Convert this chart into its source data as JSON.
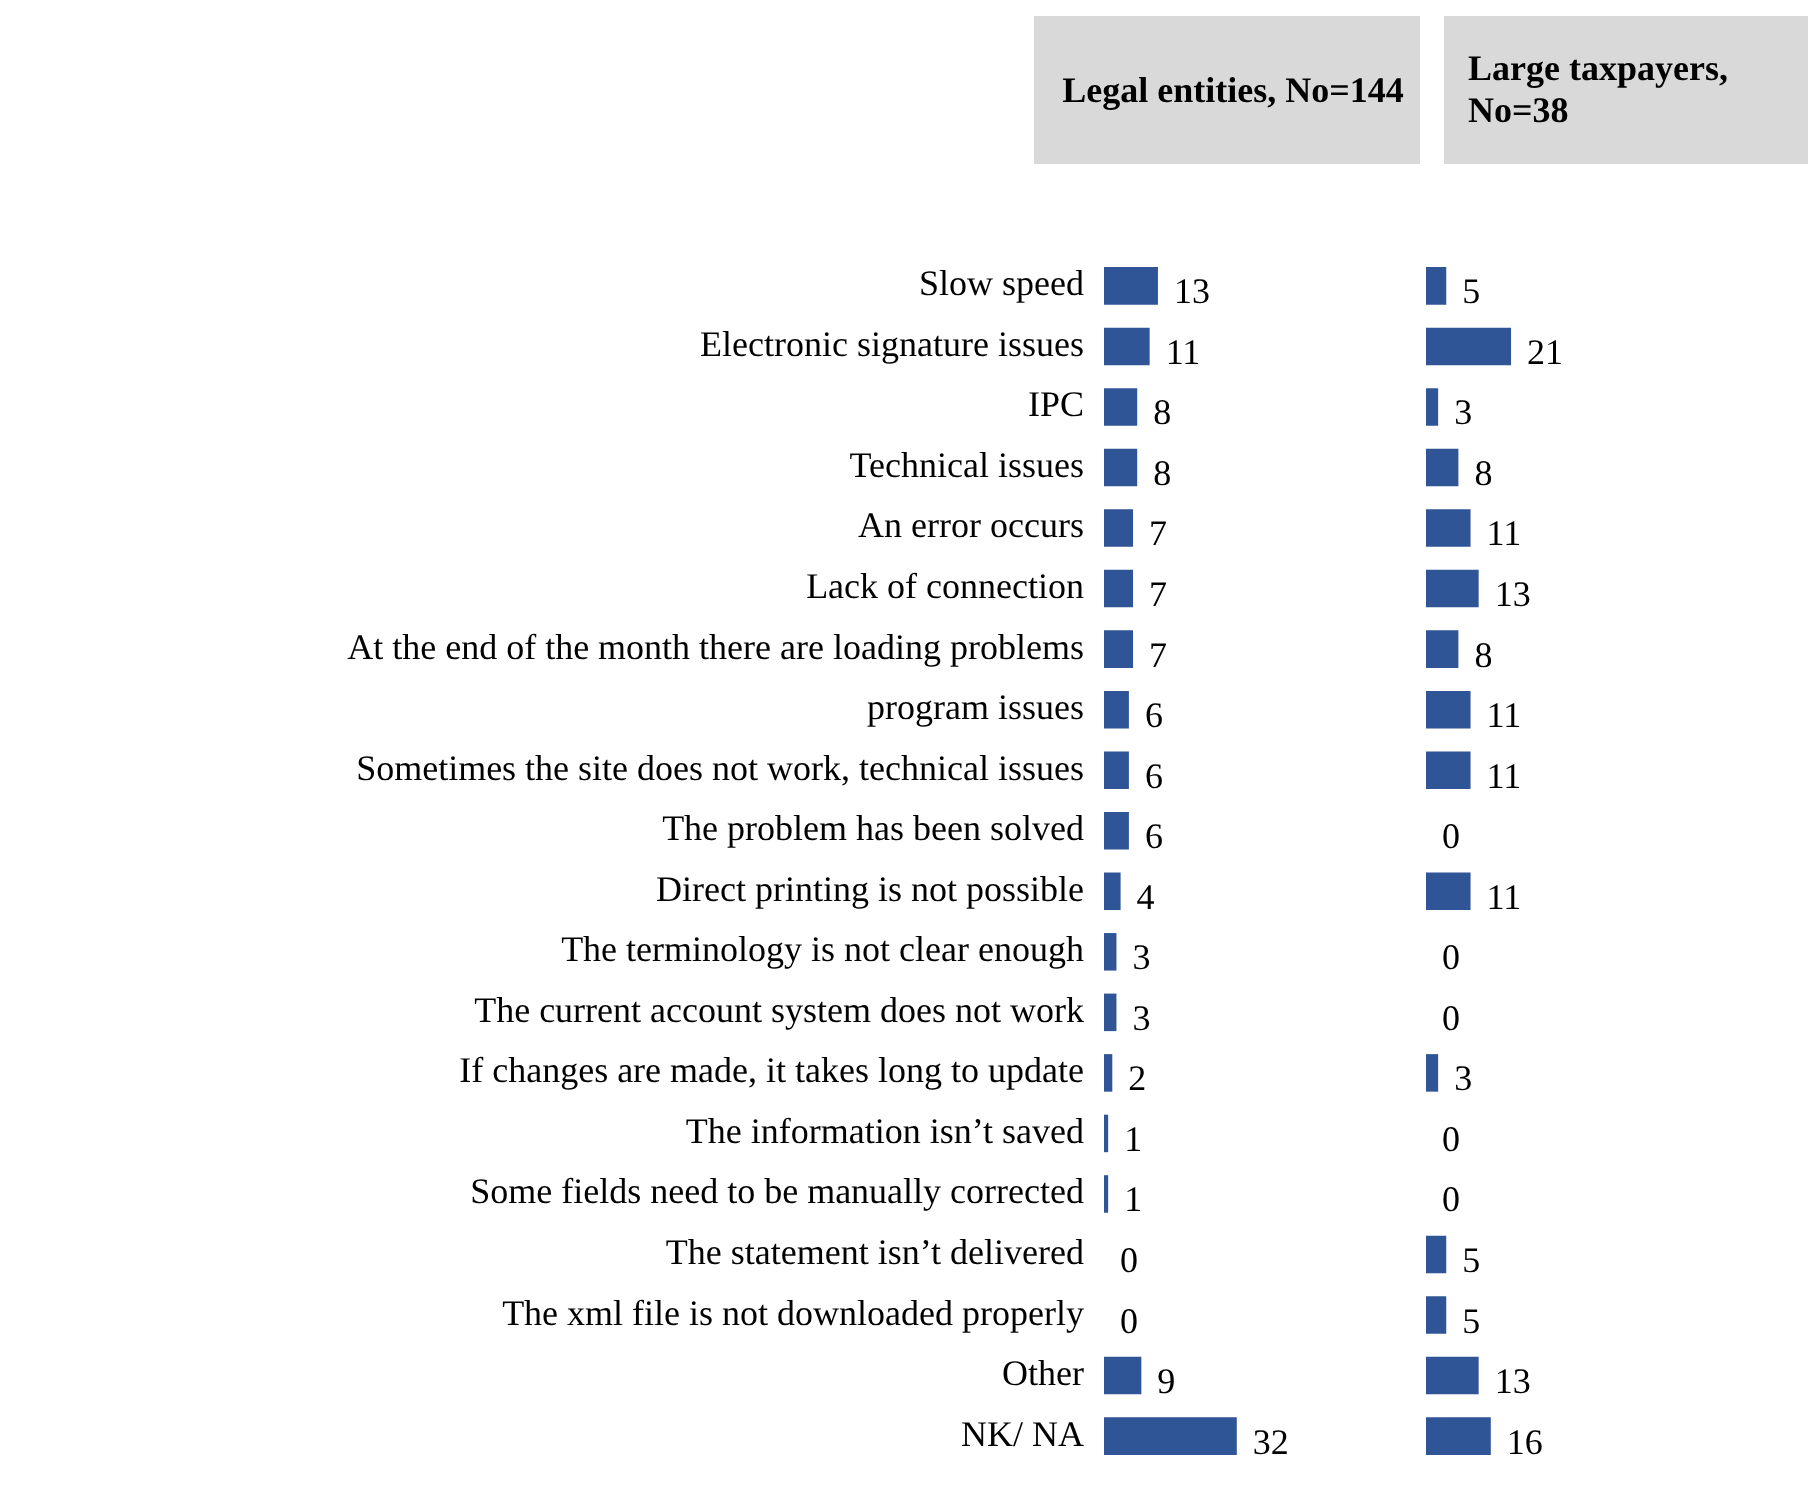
{
  "chart_data": [
    {
      "type": "bar",
      "title": "Legal entities, No=144",
      "orientation": "horizontal",
      "data_labels": true,
      "tick_labels": "y",
      "color": "#2f5597",
      "categories": [
        "Slow speed",
        "Electronic signature issues",
        "IPC",
        "Technical issues",
        "An error occurs",
        "Lack of connection",
        "At the end of the month there are loading problems",
        "program issues",
        "Sometimes the site does not work, technical issues",
        "The problem has been solved",
        "Direct printing is not possible",
        "The terminology is not clear enough",
        "The current account system does not work",
        "If changes are made, it takes long to update",
        "The information isn’t saved",
        "Some fields need to be manually corrected",
        "The statement isn’t delivered",
        "The xml file is not downloaded properly",
        "Other",
        "NK/ NA"
      ],
      "values": [
        13,
        11,
        8,
        8,
        7,
        7,
        7,
        6,
        6,
        6,
        4,
        3,
        3,
        2,
        1,
        1,
        0,
        0,
        9,
        32
      ]
    },
    {
      "type": "bar",
      "title": "Large taxpayers, No=38",
      "orientation": "horizontal",
      "data_labels": true,
      "tick_labels": false,
      "color": "#2f5597",
      "categories": [
        null,
        null,
        null,
        null,
        null,
        null,
        null,
        null,
        null,
        null,
        null,
        null,
        null,
        null,
        null,
        null,
        null,
        null,
        null,
        null
      ],
      "values": [
        5,
        21,
        3,
        8,
        11,
        13,
        8,
        11,
        11,
        0,
        11,
        0,
        0,
        3,
        0,
        0,
        5,
        5,
        13,
        16
      ]
    }
  ]
}
